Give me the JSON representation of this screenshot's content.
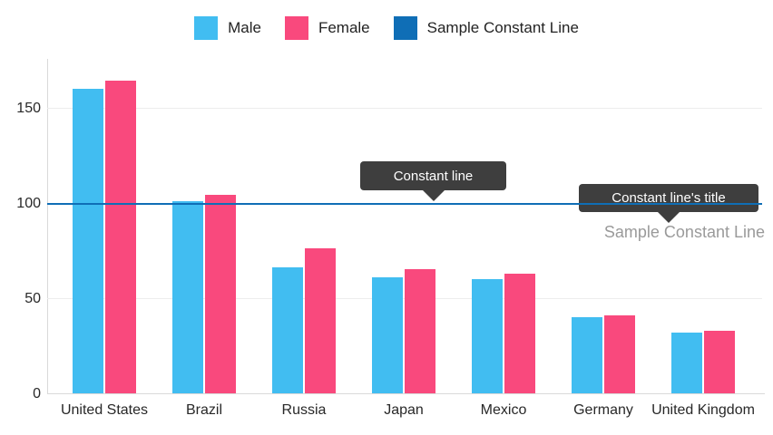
{
  "legend": {
    "items": [
      {
        "label": "Male",
        "color": "#41BDF1"
      },
      {
        "label": "Female",
        "color": "#F9497D"
      },
      {
        "label": "Sample Constant Line",
        "color": "#0F6EB6"
      }
    ]
  },
  "chart_data": {
    "type": "bar",
    "categories": [
      "United States",
      "Brazil",
      "Russia",
      "Japan",
      "Mexico",
      "Germany",
      "United Kingdom"
    ],
    "series": [
      {
        "name": "Male",
        "color": "#41BDF1",
        "values": [
          160,
          101,
          66,
          61,
          60,
          40,
          32
        ]
      },
      {
        "name": "Female",
        "color": "#F9497D",
        "values": [
          164,
          104,
          76,
          65,
          63,
          41,
          33
        ]
      }
    ],
    "constant_line": {
      "value": 100,
      "title": "Sample Constant Line",
      "color": "#0F6EB6"
    },
    "yticks": [
      0,
      50,
      100,
      150
    ],
    "ylim": [
      0,
      176
    ],
    "grid": true,
    "legend_position": "top"
  },
  "annotations": {
    "constant_line_callout": "Constant line",
    "constant_line_title_callout": "Constant line's title",
    "constant_line_label": "Sample Constant Line"
  }
}
